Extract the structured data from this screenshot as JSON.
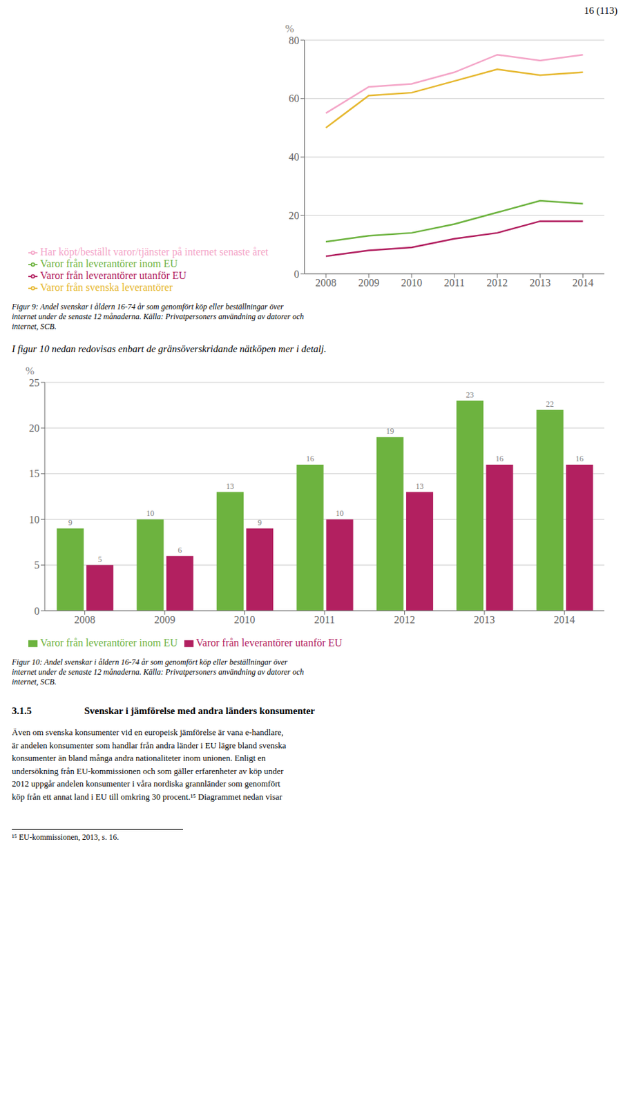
{
  "chart_data": [
    {
      "type": "line",
      "x": [
        2008,
        2009,
        2010,
        2011,
        2012,
        2013,
        2014
      ],
      "xlim": [
        2007.5,
        2014.5
      ],
      "xticks": [
        2008,
        2009,
        2010,
        2011,
        2012,
        2013,
        2014
      ],
      "ylim": [
        0,
        80
      ],
      "yticks": [
        0,
        20,
        40,
        60,
        80
      ],
      "y_label": "%",
      "grid": true,
      "series": [
        {
          "name": "Har köpt/beställt varor/tjänster på internet senaste året",
          "color": "#f4a6c8",
          "values": [
            55,
            64,
            65,
            69,
            75,
            73,
            75
          ]
        },
        {
          "name": "Varor från svenska leverantörer",
          "color": "#e6b830",
          "values": [
            50,
            61,
            62,
            66,
            70,
            68,
            69
          ]
        },
        {
          "name": "Varor från leverantörer inom EU",
          "color": "#6db33f",
          "values": [
            11,
            13,
            14,
            17,
            21,
            25,
            24
          ]
        },
        {
          "name": "Varor från leverantörer utanför EU",
          "color": "#b22060",
          "values": [
            6,
            8,
            9,
            12,
            14,
            18,
            18
          ]
        }
      ],
      "annotations": [
        "16 (113)",
        "Figur 9: Andel svenskar i åldern 16-74 år som genomfört köp eller beställningar över\ninternet under de senaste 12 månaderna. Källa: Privatpersoners användning av datorer och\ninternet, SCB.",
        "I figur 10 nedan redovisas enbart de gränsöverskridande nätköpen mer i detalj."
      ]
    },
    {
      "type": "bar",
      "categories": [
        "2008",
        "2009",
        "2010",
        "2011",
        "2012",
        "2013",
        "2014"
      ],
      "ylim": [
        0,
        25
      ],
      "yticks": [
        0,
        5,
        10,
        15,
        20,
        25
      ],
      "y_label": "%",
      "grid": true,
      "data_labels": true,
      "series": [
        {
          "name": "Varor från leverantörer inom EU",
          "color": "#6db33f",
          "values": [
            9,
            10,
            13,
            16,
            19,
            23,
            22
          ]
        },
        {
          "name": "Varor från leverantörer utanför EU",
          "color": "#b22060",
          "values": [
            5,
            6,
            9,
            10,
            13,
            16,
            16
          ]
        }
      ],
      "annotations": [
        "Figur 10: Andel svenskar i åldern 16-74 år som genomfört köp eller beställningar över\ninternet under de senaste 12 månaderna. Källa: Privatpersoners användning av datorer och\ninternet, SCB.",
        "3.1.5",
        "Svenskar i jämförelse med andra länders konsumenter",
        "Även om svenska konsumenter vid en europeisk jämförelse är vana e-handlare,\när andelen konsumenter som handlar från andra länder i EU lägre bland svenska\nkonsumenter än bland många andra nationaliteter inom unionen. Enligt en\nundersökning från EU-kommissionen och som gäller erfarenheter av köp under\n2012 uppgår andelen konsumenter i våra nordiska grannländer som genomfört\nköp från ett annat land i EU till omkring 30 procent.¹⁵ Diagrammet nedan visar",
        "¹⁵ EU-kommissionen, 2013, s. 16."
      ]
    }
  ]
}
